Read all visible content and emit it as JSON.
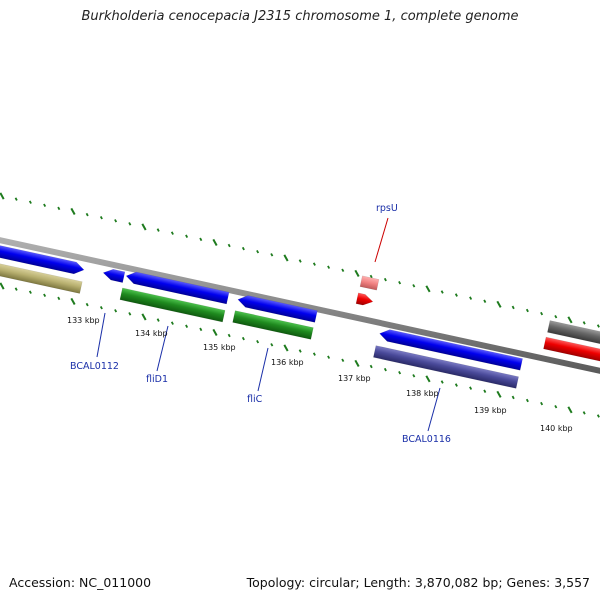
{
  "title": "Burkholderia cenocepacia J2315 chromosome 1, complete genome",
  "footer": {
    "accession": "Accession: NC_011000",
    "summary": "Topology: circular; Length: 3,870,082 bp; Genes: 3,557"
  },
  "colors": {
    "cds_blue": "#0000ee",
    "cds_green": "#1f8a1f",
    "cds_khaki": "#b8b070",
    "cds_purple": "#4a4a9a",
    "cds_gray": "#666666",
    "cds_red": "#ee0000",
    "rna_pink": "#f08080",
    "tick_green": "#1e7b1e",
    "backbone_gray": "#8a8a8a",
    "label_blue": "#1a2fa8",
    "label_red": "#cc0000"
  },
  "ticks": [
    {
      "label": "133 kbp"
    },
    {
      "label": "134 kbp"
    },
    {
      "label": "135 kbp"
    },
    {
      "label": "136 kbp"
    },
    {
      "label": "137 kbp"
    },
    {
      "label": "138 kbp"
    },
    {
      "label": "139 kbp"
    },
    {
      "label": "140 kbp"
    }
  ],
  "gene_labels": [
    {
      "name": "BCAL0112",
      "color": "#1a2fa8"
    },
    {
      "name": "fliD1",
      "color": "#1a2fa8"
    },
    {
      "name": "fliC",
      "color": "#1a2fa8"
    },
    {
      "name": "BCAL0116",
      "color": "#1a2fa8"
    },
    {
      "name": "rpsU",
      "color": "#cc0000"
    }
  ]
}
